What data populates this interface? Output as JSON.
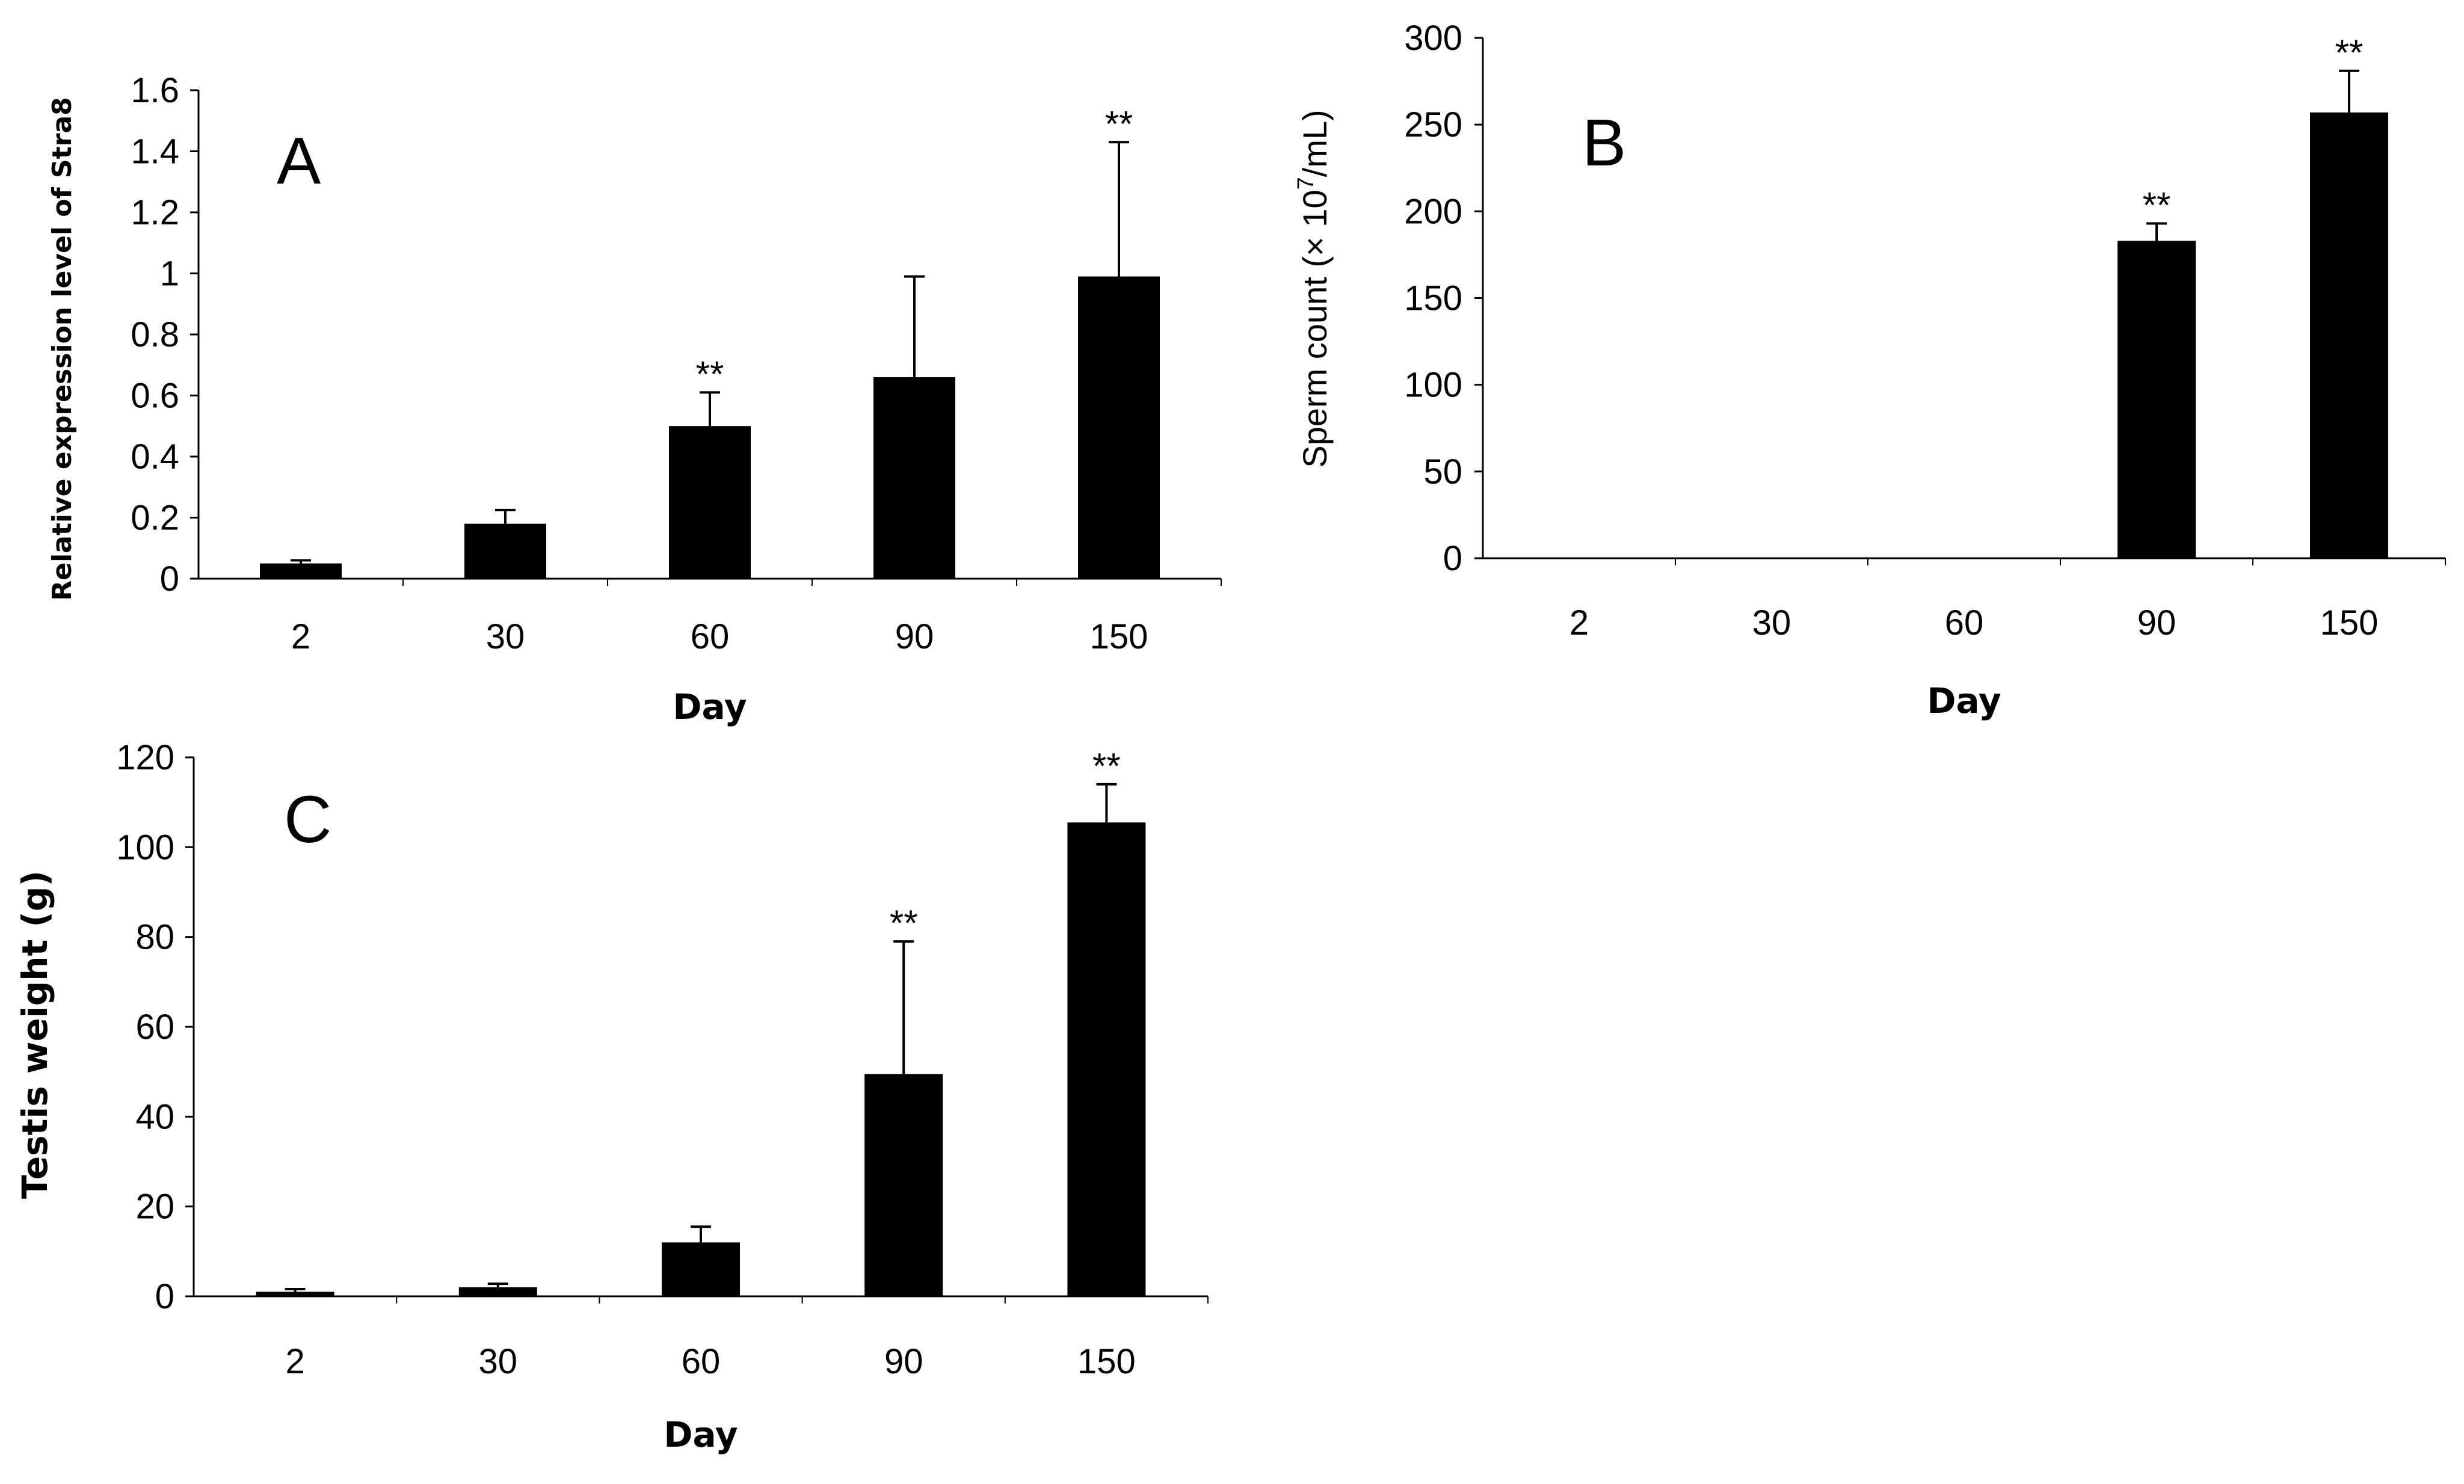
{
  "chart_data": [
    {
      "type": "bar",
      "panel_label": "A",
      "categories": [
        "2",
        "30",
        "60",
        "90",
        "150"
      ],
      "values": [
        0.05,
        0.18,
        0.5,
        0.66,
        0.99
      ],
      "errors": [
        0.01,
        0.045,
        0.11,
        0.33,
        0.44
      ],
      "significance": [
        "",
        "",
        "**",
        "",
        "**"
      ],
      "xlabel": "Day",
      "ylabel": "Relative expression level of Stra8",
      "ylim": [
        0,
        1.6
      ],
      "yticks": [
        "0",
        "0.2",
        "0.4",
        "0.6",
        "0.8",
        "1",
        "1.2",
        "1.4",
        "1.6"
      ]
    },
    {
      "type": "bar",
      "panel_label": "B",
      "categories": [
        "2",
        "30",
        "60",
        "90",
        "150"
      ],
      "values": [
        0,
        0,
        0.5,
        183,
        257
      ],
      "errors": [
        0,
        0,
        0,
        10,
        24
      ],
      "significance": [
        "",
        "",
        "",
        "**",
        "**"
      ],
      "xlabel": "Day",
      "ylabel_prefix": "Sperm count (× 10",
      "ylabel_sup": "7",
      "ylabel_suffix": "/mL)",
      "ylim": [
        0,
        300
      ],
      "yticks": [
        "0",
        "50",
        "100",
        "150",
        "200",
        "250",
        "300"
      ]
    },
    {
      "type": "bar",
      "panel_label": "C",
      "categories": [
        "2",
        "30",
        "60",
        "90",
        "150"
      ],
      "values": [
        1,
        2,
        12,
        49.5,
        105.5
      ],
      "errors": [
        0.6,
        0.8,
        3.5,
        29.5,
        8.5
      ],
      "significance": [
        "",
        "",
        "",
        "**",
        "**"
      ],
      "xlabel": "Day",
      "ylabel": "Testis weight (g)",
      "ylim": [
        0,
        120
      ],
      "yticks": [
        "0",
        "20",
        "40",
        "60",
        "80",
        "100",
        "120"
      ]
    }
  ]
}
